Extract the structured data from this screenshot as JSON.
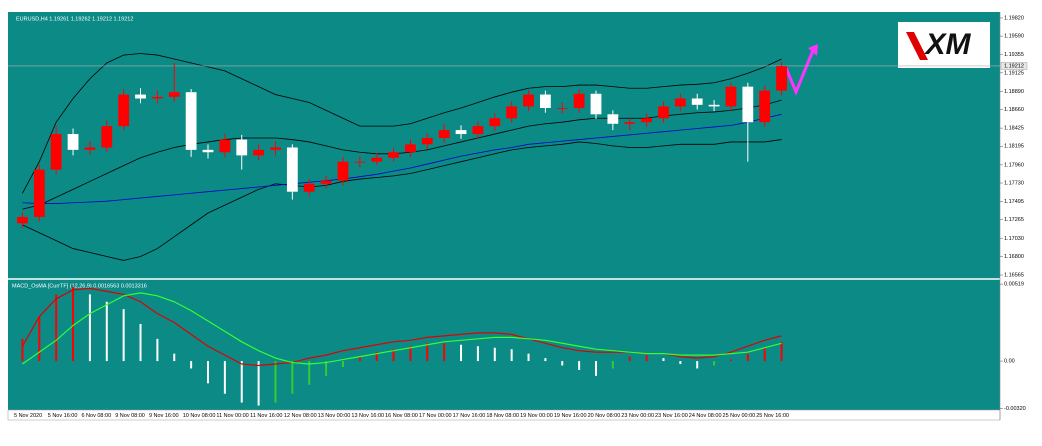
{
  "logo": "XM",
  "chart_data": [
    {
      "type": "candlestick",
      "title": "EURUSD,H4  1.19261 1.19262 1.19212 1.19212",
      "categories": [
        "5 Nov 2020",
        null,
        "5 Nov 16:00",
        null,
        "6 Nov 08:00",
        null,
        "9 Nov 08:00",
        null,
        "9 Nov 16:00",
        null,
        "10 Nov 08:00",
        null,
        "11 Nov 00:00",
        null,
        "11 Nov 16:00",
        null,
        "12 Nov 08:00",
        null,
        "13 Nov 00:00",
        null,
        "13 Nov 16:00",
        null,
        "16 Nov 08:00",
        null,
        "17 Nov 00:00",
        null,
        "17 Nov 16:00",
        null,
        "18 Nov 08:00",
        null,
        "19 Nov 00:00",
        null,
        "19 Nov 16:00",
        null,
        "20 Nov 08:00",
        null,
        "23 Nov 00:00",
        null,
        "23 Nov 16:00",
        null,
        "24 Nov 08:00",
        null,
        "25 Nov 00:00",
        null,
        "25 Nov 16:00",
        null
      ],
      "ohlc": [
        [
          1.1722,
          1.1736,
          1.1716,
          1.173
        ],
        [
          1.173,
          1.1796,
          1.1724,
          1.179
        ],
        [
          1.179,
          1.1845,
          1.1784,
          1.1835
        ],
        [
          1.1835,
          1.1842,
          1.1808,
          1.1815
        ],
        [
          1.1815,
          1.1826,
          1.1809,
          1.1818
        ],
        [
          1.1818,
          1.1852,
          1.1812,
          1.1845
        ],
        [
          1.1845,
          1.1892,
          1.184,
          1.1885
        ],
        [
          1.1885,
          1.1893,
          1.1874,
          1.188
        ],
        [
          1.188,
          1.189,
          1.1874,
          1.1882
        ],
        [
          1.1882,
          1.1925,
          1.1876,
          1.1888
        ],
        [
          1.1888,
          1.1892,
          1.1806,
          1.1815
        ],
        [
          1.1815,
          1.1822,
          1.1804,
          1.1812
        ],
        [
          1.1812,
          1.1835,
          1.1806,
          1.1828
        ],
        [
          1.1828,
          1.1834,
          1.179,
          1.1808
        ],
        [
          1.1808,
          1.1822,
          1.1802,
          1.1815
        ],
        [
          1.1815,
          1.1826,
          1.1808,
          1.1818
        ],
        [
          1.1818,
          1.1822,
          1.1752,
          1.1762
        ],
        [
          1.1762,
          1.1778,
          1.1756,
          1.1772
        ],
        [
          1.1772,
          1.1782,
          1.1766,
          1.1776
        ],
        [
          1.1776,
          1.1806,
          1.177,
          1.18
        ],
        [
          1.18,
          1.1807,
          1.1793,
          1.18
        ],
        [
          1.18,
          1.1811,
          1.1796,
          1.1805
        ],
        [
          1.1805,
          1.1818,
          1.18,
          1.1812
        ],
        [
          1.1812,
          1.1828,
          1.1806,
          1.1822
        ],
        [
          1.1822,
          1.1836,
          1.1816,
          1.183
        ],
        [
          1.183,
          1.1848,
          1.1824,
          1.184
        ],
        [
          1.184,
          1.1846,
          1.1829,
          1.1835
        ],
        [
          1.1835,
          1.1851,
          1.1829,
          1.1845
        ],
        [
          1.1845,
          1.1861,
          1.1839,
          1.1855
        ],
        [
          1.1855,
          1.1876,
          1.1849,
          1.187
        ],
        [
          1.187,
          1.1891,
          1.1864,
          1.1885
        ],
        [
          1.1885,
          1.189,
          1.1862,
          1.1868
        ],
        [
          1.1868,
          1.1875,
          1.1861,
          1.1868
        ],
        [
          1.1868,
          1.1892,
          1.1862,
          1.1886
        ],
        [
          1.1886,
          1.189,
          1.1854,
          1.186
        ],
        [
          1.186,
          1.1865,
          1.184,
          1.1848
        ],
        [
          1.1848,
          1.1856,
          1.184,
          1.185
        ],
        [
          1.185,
          1.1861,
          1.1844,
          1.1855
        ],
        [
          1.1855,
          1.1876,
          1.1849,
          1.187
        ],
        [
          1.187,
          1.1886,
          1.1864,
          1.188
        ],
        [
          1.188,
          1.1886,
          1.1866,
          1.1872
        ],
        [
          1.1872,
          1.1878,
          1.1864,
          1.187
        ],
        [
          1.187,
          1.19,
          1.1864,
          1.1895
        ],
        [
          1.1895,
          1.19,
          1.18,
          1.185
        ],
        [
          1.185,
          1.1896,
          1.1844,
          1.189
        ],
        [
          1.189,
          1.19262,
          1.1884,
          1.1921
        ]
      ],
      "up_color": "#ff0000",
      "down_color": "#ffffff",
      "series": [
        {
          "color": "#000000",
          "values": [
            1.176,
            1.18,
            1.185,
            1.188,
            1.1905,
            1.1925,
            1.1935,
            1.1937,
            1.1935,
            1.193,
            1.1925,
            1.192,
            1.1915,
            1.1905,
            1.1895,
            1.1885,
            1.188,
            1.1875,
            1.1865,
            1.1855,
            1.1845,
            1.1845,
            1.1845,
            1.1848,
            1.1855,
            1.1862,
            1.1868,
            1.1875,
            1.1882,
            1.1888,
            1.1893,
            1.1895,
            1.1895,
            1.1897,
            1.1897,
            1.1895,
            1.1893,
            1.1893,
            1.1895,
            1.1897,
            1.1898,
            1.19,
            1.1905,
            1.1912,
            1.192,
            1.193
          ]
        },
        {
          "color": "#000000",
          "values": [
            1.174,
            1.1745,
            1.1755,
            1.1765,
            1.1775,
            1.1785,
            1.1795,
            1.1805,
            1.1812,
            1.1818,
            1.1822,
            1.1825,
            1.1828,
            1.183,
            1.183,
            1.183,
            1.1828,
            1.1825,
            1.182,
            1.1815,
            1.1812,
            1.181,
            1.181,
            1.1812,
            1.1815,
            1.182,
            1.1825,
            1.183,
            1.1835,
            1.184,
            1.1845,
            1.1848,
            1.185,
            1.1853,
            1.1855,
            1.1855,
            1.1855,
            1.1855,
            1.1858,
            1.186,
            1.1862,
            1.1863,
            1.1865,
            1.1868,
            1.1872,
            1.1878
          ]
        },
        {
          "color": "#000000",
          "values": [
            1.172,
            1.171,
            1.17,
            1.169,
            1.1685,
            1.168,
            1.1675,
            1.168,
            1.169,
            1.1705,
            1.172,
            1.1735,
            1.1745,
            1.1755,
            1.1765,
            1.1772,
            1.177,
            1.1768,
            1.177,
            1.1775,
            1.1778,
            1.178,
            1.1782,
            1.1785,
            1.179,
            1.1795,
            1.18,
            1.1805,
            1.181,
            1.1815,
            1.1818,
            1.182,
            1.1822,
            1.1825,
            1.1823,
            1.182,
            1.1818,
            1.1818,
            1.182,
            1.1822,
            1.1822,
            1.1822,
            1.1825,
            1.1825,
            1.1825,
            1.1828
          ]
        },
        {
          "color": "#0000cc",
          "values": [
            1.1748,
            1.1747,
            1.1747,
            1.1748,
            1.1749,
            1.175,
            1.1752,
            1.1754,
            1.1756,
            1.1758,
            1.176,
            1.1762,
            1.1764,
            1.1766,
            1.1768,
            1.177,
            1.1772,
            1.1774,
            1.1776,
            1.1778,
            1.1781,
            1.1784,
            1.1788,
            1.1792,
            1.1797,
            1.1802,
            1.1807,
            1.1811,
            1.1815,
            1.1818,
            1.1822,
            1.1824,
            1.1826,
            1.1828,
            1.183,
            1.1832,
            1.1834,
            1.1836,
            1.1838,
            1.184,
            1.1842,
            1.1844,
            1.1846,
            1.185,
            1.1855,
            1.186
          ]
        }
      ],
      "current_price": 1.19212,
      "ylim": [
        1.1654,
        1.1987
      ],
      "yticks": [
        {
          "value": 1.1982,
          "label": "1.19820"
        },
        {
          "value": 1.1959,
          "label": "1.19590"
        },
        {
          "value": 1.19355,
          "label": "1.19355"
        },
        {
          "value": 1.19125,
          "label": "1.19125"
        },
        {
          "value": 1.1889,
          "label": "1.18890"
        },
        {
          "value": 1.1866,
          "label": "1.18660"
        },
        {
          "value": 1.18425,
          "label": "1.18425"
        },
        {
          "value": 1.18195,
          "label": "1.18195"
        },
        {
          "value": 1.1796,
          "label": "1.17960"
        },
        {
          "value": 1.1773,
          "label": "1.17730"
        },
        {
          "value": 1.17495,
          "label": "1.17495"
        },
        {
          "value": 1.17265,
          "label": "1.17265"
        },
        {
          "value": 1.1703,
          "label": "1.17030"
        },
        {
          "value": 1.168,
          "label": "1.16800"
        },
        {
          "value": 1.16565,
          "label": "1.16565"
        }
      ]
    },
    {
      "type": "macd",
      "title": "MACD_OsMA [CurrTF] (12,26,9) 0.0016563 0.0013316",
      "histogram": [
        0.0015,
        0.003,
        0.0045,
        0.005,
        0.0045,
        0.004,
        0.0035,
        0.0025,
        0.0015,
        0.0005,
        -0.0005,
        -0.0015,
        -0.0022,
        -0.0028,
        -0.003,
        -0.0028,
        -0.0022,
        -0.0016,
        -0.001,
        -0.0004,
        0.0003,
        0.0006,
        0.0008,
        0.001,
        0.0012,
        0.0012,
        0.0011,
        0.001,
        0.0009,
        0.0008,
        0.0005,
        0.0002,
        -0.0003,
        -0.0006,
        -0.001,
        -0.0005,
        0.0003,
        0.0004,
        0.0002,
        -0.0002,
        -0.0005,
        -0.0003,
        0.0001,
        0.0005,
        0.0009,
        0.0013
      ],
      "rise_pos_color": "#ff0000",
      "rise_neg_color": "#33cc33",
      "fall_color": "#ffffff",
      "series": [
        {
          "color": "#e00000",
          "values": [
            0.001,
            0.003,
            0.0042,
            0.0048,
            0.0049,
            0.0047,
            0.0045,
            0.004,
            0.0032,
            0.0026,
            0.0018,
            0.001,
            0.0004,
            -0.0002,
            -0.0003,
            -0.0002,
            -0.0001,
            0.0002,
            0.0004,
            0.0007,
            0.0009,
            0.0011,
            0.0013,
            0.0014,
            0.0016,
            0.0017,
            0.0018,
            0.0019,
            0.0019,
            0.0018,
            0.0015,
            0.0012,
            0.0009,
            0.0007,
            0.0006,
            0.0006,
            0.0006,
            0.0005,
            0.0005,
            0.0003,
            0.0002,
            0.0003,
            0.0006,
            0.001,
            0.0014,
            0.0017
          ]
        },
        {
          "color": "#33ff33",
          "values": [
            -0.0002,
            0.0006,
            0.0014,
            0.0024,
            0.0032,
            0.0038,
            0.0044,
            0.0046,
            0.0044,
            0.004,
            0.0034,
            0.0027,
            0.002,
            0.0013,
            0.0007,
            0.0002,
            -0.0001,
            -0.0002,
            -0.0001,
            0.0001,
            0.0003,
            0.0005,
            0.0007,
            0.0009,
            0.0011,
            0.0013,
            0.0014,
            0.0015,
            0.0016,
            0.0016,
            0.0015,
            0.0014,
            0.0012,
            0.001,
            0.0008,
            0.0007,
            0.0006,
            0.0005,
            0.0005,
            0.0004,
            0.0004,
            0.0004,
            0.0005,
            0.0006,
            0.0009,
            0.0012
          ]
        }
      ],
      "ylim": [
        -0.0033,
        0.0054
      ],
      "yticks": [
        0.00519,
        {
          "value": 0,
          "label": "0.00"
        },
        {
          "value": -0.0032,
          "label": "-0.00320"
        }
      ]
    }
  ]
}
